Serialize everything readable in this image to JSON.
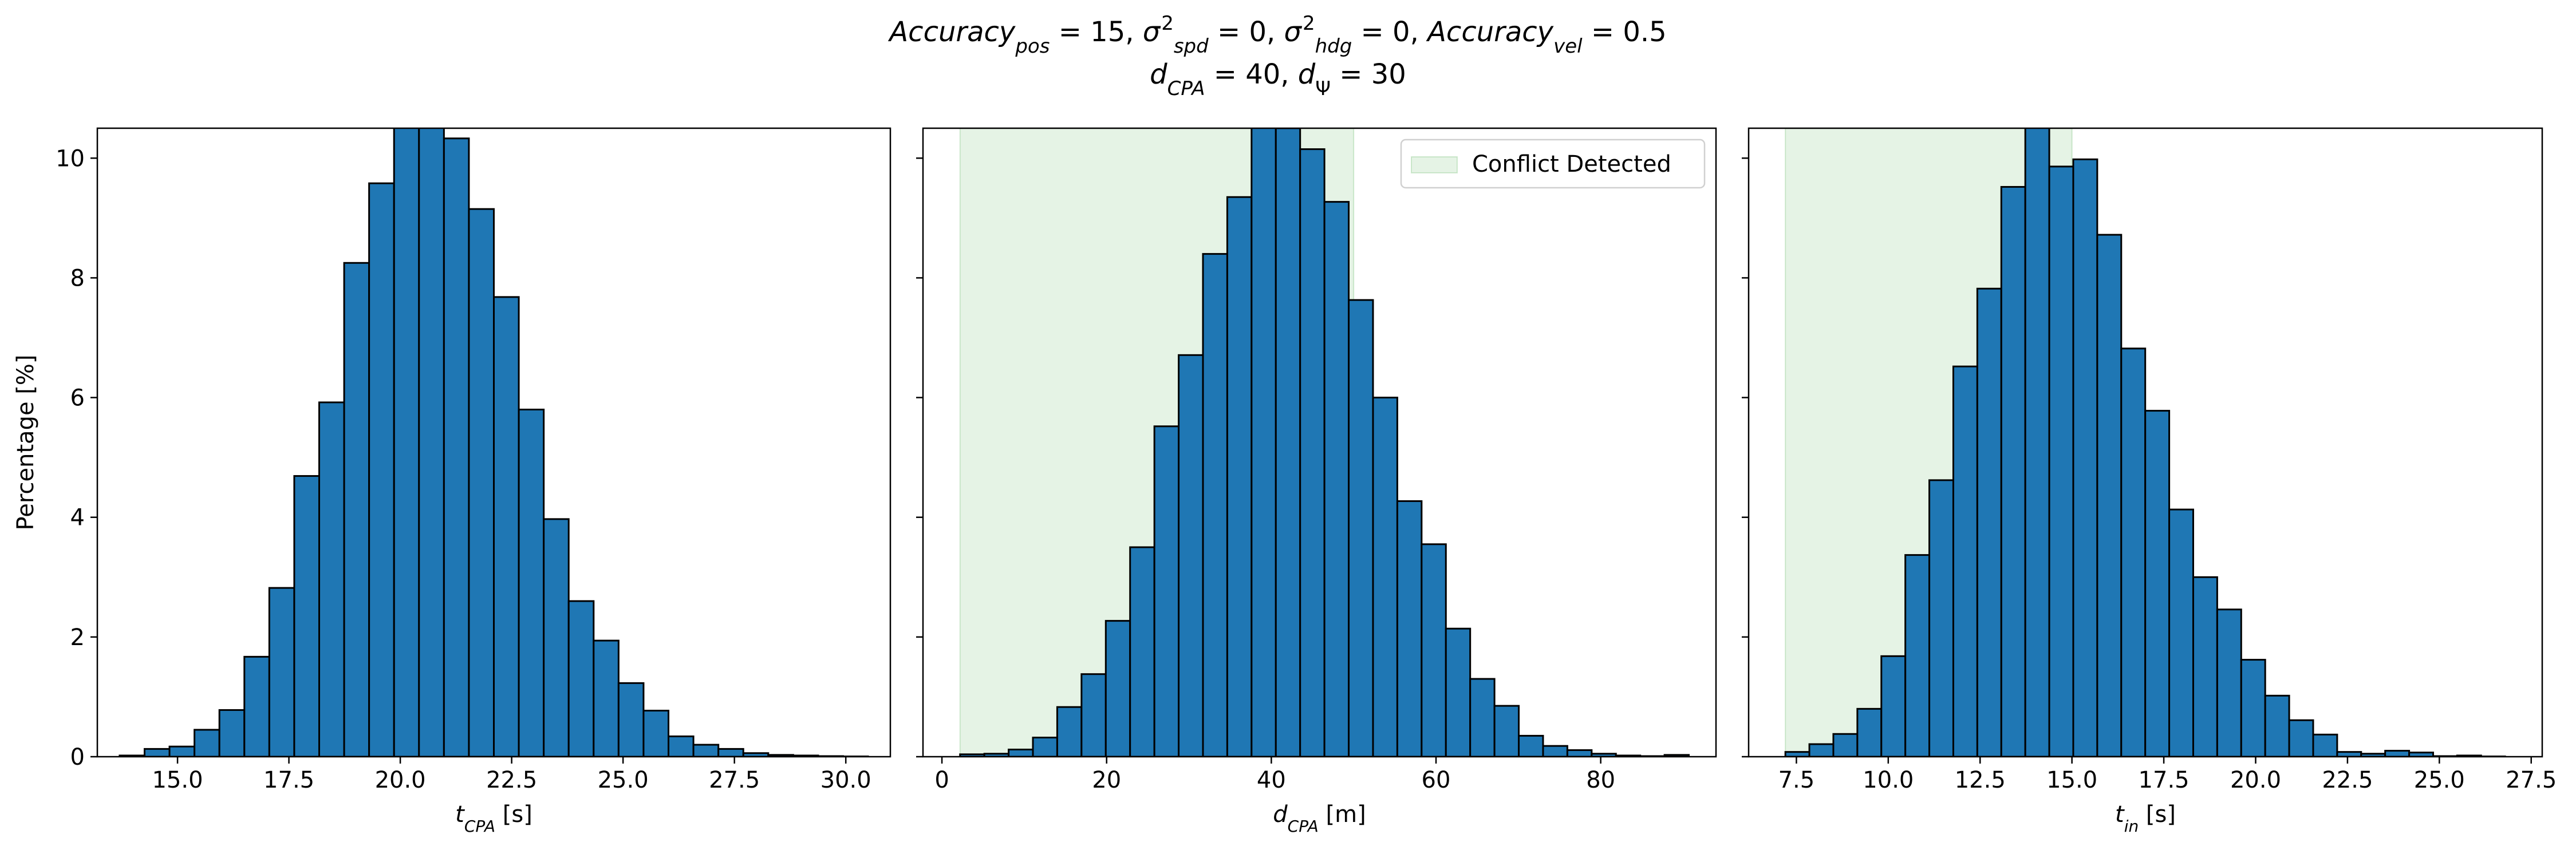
{
  "figure": {
    "title_line1_parts": [
      {
        "t": "Accuracy",
        "s": "italic"
      },
      {
        "t": "pos",
        "s": "italic-sub"
      },
      {
        "t": " = 15, ",
        "s": "normal"
      },
      {
        "t": "σ",
        "s": "italic"
      },
      {
        "t": "2",
        "s": "sup"
      },
      {
        "t": "spd",
        "s": "italic-sub"
      },
      {
        "t": " = 0, ",
        "s": "normal"
      },
      {
        "t": "σ",
        "s": "italic"
      },
      {
        "t": "2",
        "s": "sup"
      },
      {
        "t": "hdg",
        "s": "italic-sub"
      },
      {
        "t": " = 0, ",
        "s": "normal"
      },
      {
        "t": "Accuracy",
        "s": "italic"
      },
      {
        "t": "vel",
        "s": "italic-sub"
      },
      {
        "t": " = 0.5",
        "s": "normal"
      }
    ],
    "title_line2_parts": [
      {
        "t": "d",
        "s": "italic"
      },
      {
        "t": "CPA",
        "s": "italic-sub"
      },
      {
        "t": " = 40, ",
        "s": "normal"
      },
      {
        "t": "d",
        "s": "italic"
      },
      {
        "t": "Ψ",
        "s": "sub"
      },
      {
        "t": " = 30",
        "s": "normal"
      }
    ],
    "bar_color": "#1f77b4",
    "bar_edge_color": "#000000",
    "shade_color": "#2ca02c"
  },
  "chart_data": [
    {
      "type": "bar",
      "name": "t_CPA histogram",
      "xlabel_parts": [
        {
          "t": "t",
          "s": "italic"
        },
        {
          "t": "CPA",
          "s": "italic-sub"
        },
        {
          "t": " [s]",
          "s": "normal"
        }
      ],
      "ylabel": "Percentage [%]",
      "xlim": [
        13.2,
        31.0
      ],
      "ylim": [
        0,
        10.5
      ],
      "xticks": [
        15.0,
        17.5,
        20.0,
        22.5,
        25.0,
        27.5,
        30.0
      ],
      "xtick_labels": [
        "15.0",
        "17.5",
        "20.0",
        "22.5",
        "25.0",
        "27.5",
        "30.0"
      ],
      "yticks": [
        0,
        2,
        4,
        6,
        8,
        10
      ],
      "ytick_labels": [
        "0",
        "2",
        "4",
        "6",
        "8",
        "10"
      ],
      "show_yticklabels": true,
      "bin_start": 13.7,
      "bin_width": 0.56,
      "values": [
        0.02,
        0.13,
        0.17,
        0.45,
        0.78,
        1.67,
        2.82,
        4.69,
        5.92,
        8.25,
        9.58,
        11.2,
        10.7,
        10.33,
        9.15,
        7.68,
        5.8,
        3.97,
        2.6,
        1.94,
        1.23,
        0.77,
        0.34,
        0.2,
        0.13,
        0.06,
        0.03,
        0.02,
        0.01,
        0.005
      ],
      "shaded_region": null,
      "legend": null
    },
    {
      "type": "bar",
      "name": "d_CPA histogram",
      "xlabel_parts": [
        {
          "t": "d",
          "s": "italic"
        },
        {
          "t": "CPA",
          "s": "italic-sub"
        },
        {
          "t": " [m]",
          "s": "normal"
        }
      ],
      "ylabel": "",
      "xlim": [
        -2.3,
        94.0
      ],
      "ylim": [
        0,
        10.5
      ],
      "xticks": [
        0,
        20,
        40,
        60,
        80
      ],
      "xtick_labels": [
        "0",
        "20",
        "40",
        "60",
        "80"
      ],
      "yticks": [
        0,
        2,
        4,
        6,
        8,
        10
      ],
      "ytick_labels": [],
      "show_yticklabels": false,
      "bin_start": 2.2,
      "bin_width": 2.95,
      "values": [
        0.04,
        0.05,
        0.12,
        0.32,
        0.83,
        1.38,
        2.27,
        3.5,
        5.52,
        6.71,
        8.4,
        9.35,
        11.5,
        10.5,
        10.15,
        9.27,
        7.63,
        6.0,
        4.27,
        3.55,
        2.14,
        1.3,
        0.85,
        0.35,
        0.18,
        0.11,
        0.05,
        0.02,
        0.01,
        0.03
      ],
      "shaded_region": [
        2.2,
        50.0
      ],
      "legend": {
        "label": "Conflict Detected",
        "placement": "top-right"
      }
    },
    {
      "type": "bar",
      "name": "t_in histogram",
      "xlabel_parts": [
        {
          "t": "t",
          "s": "italic"
        },
        {
          "t": "in",
          "s": "italic-sub"
        },
        {
          "t": " [s]",
          "s": "normal"
        }
      ],
      "ylabel": "",
      "xlim": [
        6.2,
        27.8
      ],
      "ylim": [
        0,
        10.5
      ],
      "xticks": [
        7.5,
        10.0,
        12.5,
        15.0,
        17.5,
        20.0,
        22.5,
        25.0,
        27.5
      ],
      "xtick_labels": [
        "7.5",
        "10.0",
        "12.5",
        "15.0",
        "17.5",
        "20.0",
        "22.5",
        "25.0",
        "27.5"
      ],
      "yticks": [
        0,
        2,
        4,
        6,
        8,
        10
      ],
      "ytick_labels": [],
      "show_yticklabels": false,
      "bin_start": 7.2,
      "bin_width": 0.653,
      "values": [
        0.08,
        0.21,
        0.38,
        0.8,
        1.68,
        3.37,
        4.62,
        6.52,
        7.82,
        9.52,
        10.57,
        9.86,
        9.98,
        8.72,
        6.82,
        5.78,
        4.13,
        3.0,
        2.46,
        1.62,
        1.02,
        0.61,
        0.37,
        0.08,
        0.05,
        0.1,
        0.07,
        0.01,
        0.02,
        0.005
      ],
      "shaded_region": [
        7.2,
        15.0
      ],
      "legend": null
    }
  ]
}
